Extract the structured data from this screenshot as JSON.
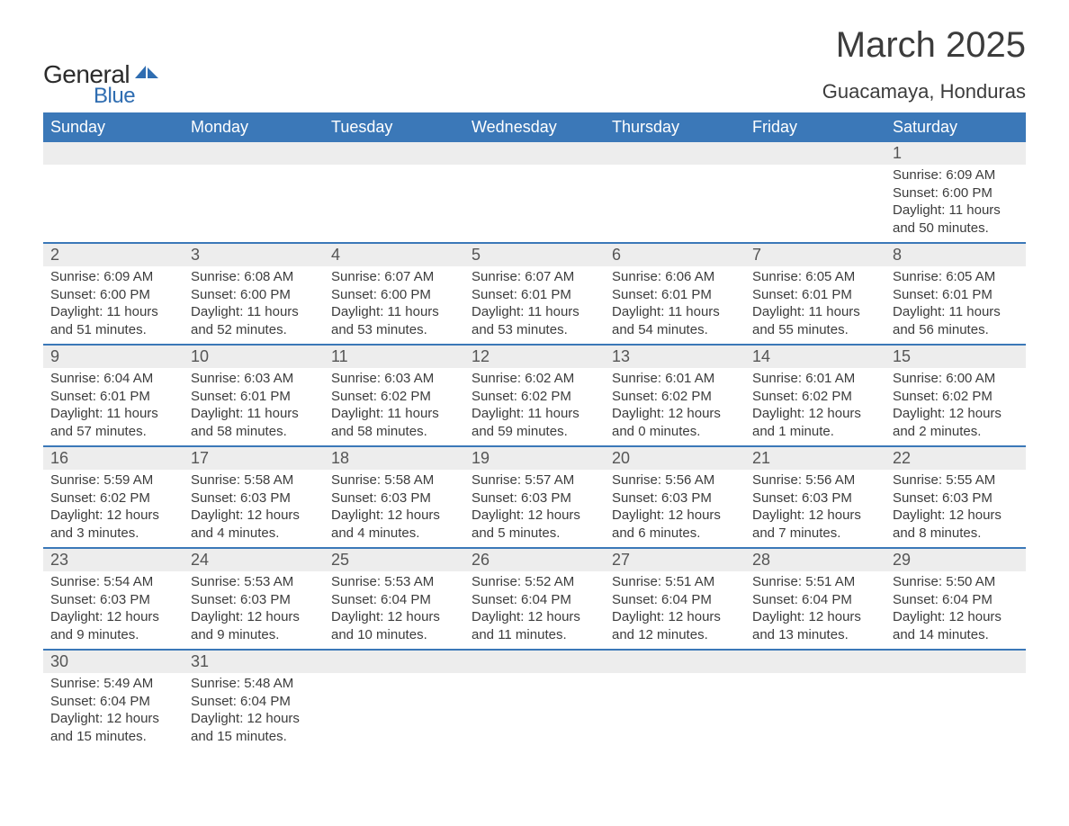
{
  "logo": {
    "text_general": "General",
    "text_blue": "Blue",
    "shape_color": "#2f6db1"
  },
  "title": "March 2025",
  "subtitle": "Guacamaya, Honduras",
  "colors": {
    "header_bg": "#3b78b8",
    "header_text": "#ffffff",
    "daynum_bg": "#ededed",
    "row_border": "#3b78b8",
    "text": "#3c3c3c"
  },
  "weekdays": [
    "Sunday",
    "Monday",
    "Tuesday",
    "Wednesday",
    "Thursday",
    "Friday",
    "Saturday"
  ],
  "weeks": [
    [
      null,
      null,
      null,
      null,
      null,
      null,
      {
        "day": "1",
        "sunrise": "Sunrise: 6:09 AM",
        "sunset": "Sunset: 6:00 PM",
        "daylight": "Daylight: 11 hours and 50 minutes."
      }
    ],
    [
      {
        "day": "2",
        "sunrise": "Sunrise: 6:09 AM",
        "sunset": "Sunset: 6:00 PM",
        "daylight": "Daylight: 11 hours and 51 minutes."
      },
      {
        "day": "3",
        "sunrise": "Sunrise: 6:08 AM",
        "sunset": "Sunset: 6:00 PM",
        "daylight": "Daylight: 11 hours and 52 minutes."
      },
      {
        "day": "4",
        "sunrise": "Sunrise: 6:07 AM",
        "sunset": "Sunset: 6:00 PM",
        "daylight": "Daylight: 11 hours and 53 minutes."
      },
      {
        "day": "5",
        "sunrise": "Sunrise: 6:07 AM",
        "sunset": "Sunset: 6:01 PM",
        "daylight": "Daylight: 11 hours and 53 minutes."
      },
      {
        "day": "6",
        "sunrise": "Sunrise: 6:06 AM",
        "sunset": "Sunset: 6:01 PM",
        "daylight": "Daylight: 11 hours and 54 minutes."
      },
      {
        "day": "7",
        "sunrise": "Sunrise: 6:05 AM",
        "sunset": "Sunset: 6:01 PM",
        "daylight": "Daylight: 11 hours and 55 minutes."
      },
      {
        "day": "8",
        "sunrise": "Sunrise: 6:05 AM",
        "sunset": "Sunset: 6:01 PM",
        "daylight": "Daylight: 11 hours and 56 minutes."
      }
    ],
    [
      {
        "day": "9",
        "sunrise": "Sunrise: 6:04 AM",
        "sunset": "Sunset: 6:01 PM",
        "daylight": "Daylight: 11 hours and 57 minutes."
      },
      {
        "day": "10",
        "sunrise": "Sunrise: 6:03 AM",
        "sunset": "Sunset: 6:01 PM",
        "daylight": "Daylight: 11 hours and 58 minutes."
      },
      {
        "day": "11",
        "sunrise": "Sunrise: 6:03 AM",
        "sunset": "Sunset: 6:02 PM",
        "daylight": "Daylight: 11 hours and 58 minutes."
      },
      {
        "day": "12",
        "sunrise": "Sunrise: 6:02 AM",
        "sunset": "Sunset: 6:02 PM",
        "daylight": "Daylight: 11 hours and 59 minutes."
      },
      {
        "day": "13",
        "sunrise": "Sunrise: 6:01 AM",
        "sunset": "Sunset: 6:02 PM",
        "daylight": "Daylight: 12 hours and 0 minutes."
      },
      {
        "day": "14",
        "sunrise": "Sunrise: 6:01 AM",
        "sunset": "Sunset: 6:02 PM",
        "daylight": "Daylight: 12 hours and 1 minute."
      },
      {
        "day": "15",
        "sunrise": "Sunrise: 6:00 AM",
        "sunset": "Sunset: 6:02 PM",
        "daylight": "Daylight: 12 hours and 2 minutes."
      }
    ],
    [
      {
        "day": "16",
        "sunrise": "Sunrise: 5:59 AM",
        "sunset": "Sunset: 6:02 PM",
        "daylight": "Daylight: 12 hours and 3 minutes."
      },
      {
        "day": "17",
        "sunrise": "Sunrise: 5:58 AM",
        "sunset": "Sunset: 6:03 PM",
        "daylight": "Daylight: 12 hours and 4 minutes."
      },
      {
        "day": "18",
        "sunrise": "Sunrise: 5:58 AM",
        "sunset": "Sunset: 6:03 PM",
        "daylight": "Daylight: 12 hours and 4 minutes."
      },
      {
        "day": "19",
        "sunrise": "Sunrise: 5:57 AM",
        "sunset": "Sunset: 6:03 PM",
        "daylight": "Daylight: 12 hours and 5 minutes."
      },
      {
        "day": "20",
        "sunrise": "Sunrise: 5:56 AM",
        "sunset": "Sunset: 6:03 PM",
        "daylight": "Daylight: 12 hours and 6 minutes."
      },
      {
        "day": "21",
        "sunrise": "Sunrise: 5:56 AM",
        "sunset": "Sunset: 6:03 PM",
        "daylight": "Daylight: 12 hours and 7 minutes."
      },
      {
        "day": "22",
        "sunrise": "Sunrise: 5:55 AM",
        "sunset": "Sunset: 6:03 PM",
        "daylight": "Daylight: 12 hours and 8 minutes."
      }
    ],
    [
      {
        "day": "23",
        "sunrise": "Sunrise: 5:54 AM",
        "sunset": "Sunset: 6:03 PM",
        "daylight": "Daylight: 12 hours and 9 minutes."
      },
      {
        "day": "24",
        "sunrise": "Sunrise: 5:53 AM",
        "sunset": "Sunset: 6:03 PM",
        "daylight": "Daylight: 12 hours and 9 minutes."
      },
      {
        "day": "25",
        "sunrise": "Sunrise: 5:53 AM",
        "sunset": "Sunset: 6:04 PM",
        "daylight": "Daylight: 12 hours and 10 minutes."
      },
      {
        "day": "26",
        "sunrise": "Sunrise: 5:52 AM",
        "sunset": "Sunset: 6:04 PM",
        "daylight": "Daylight: 12 hours and 11 minutes."
      },
      {
        "day": "27",
        "sunrise": "Sunrise: 5:51 AM",
        "sunset": "Sunset: 6:04 PM",
        "daylight": "Daylight: 12 hours and 12 minutes."
      },
      {
        "day": "28",
        "sunrise": "Sunrise: 5:51 AM",
        "sunset": "Sunset: 6:04 PM",
        "daylight": "Daylight: 12 hours and 13 minutes."
      },
      {
        "day": "29",
        "sunrise": "Sunrise: 5:50 AM",
        "sunset": "Sunset: 6:04 PM",
        "daylight": "Daylight: 12 hours and 14 minutes."
      }
    ],
    [
      {
        "day": "30",
        "sunrise": "Sunrise: 5:49 AM",
        "sunset": "Sunset: 6:04 PM",
        "daylight": "Daylight: 12 hours and 15 minutes."
      },
      {
        "day": "31",
        "sunrise": "Sunrise: 5:48 AM",
        "sunset": "Sunset: 6:04 PM",
        "daylight": "Daylight: 12 hours and 15 minutes."
      },
      null,
      null,
      null,
      null,
      null
    ]
  ]
}
